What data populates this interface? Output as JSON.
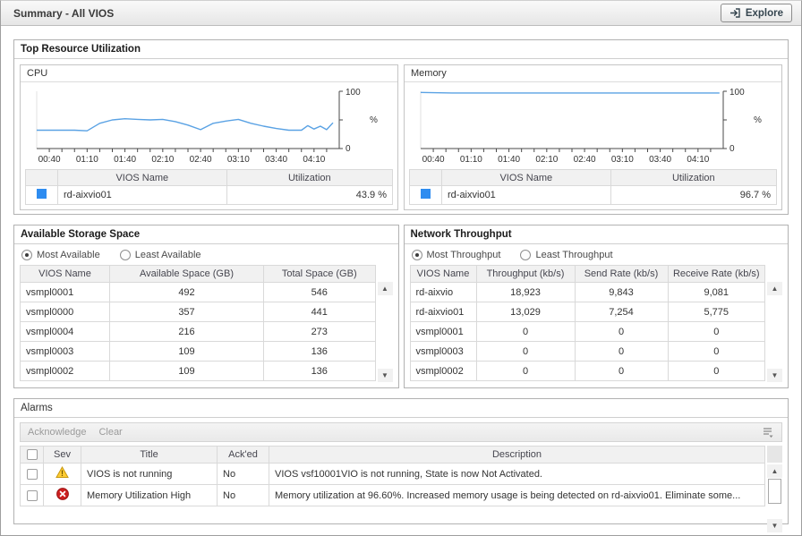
{
  "page": {
    "title": "Summary - All VIOS"
  },
  "header": {
    "explore_label": "Explore"
  },
  "top_resource": {
    "title": "Top Resource Utilization",
    "cards": {
      "cpu": {
        "title": "CPU",
        "headers": [
          "VIOS Name",
          "Utilization"
        ],
        "rows": [
          {
            "color": "#2e8cf0",
            "name": "rd-aixvio01",
            "value": "43.9 %"
          }
        ]
      },
      "memory": {
        "title": "Memory",
        "headers": [
          "VIOS Name",
          "Utilization"
        ],
        "rows": [
          {
            "color": "#2e8cf0",
            "name": "rd-aixvio01",
            "value": "96.7 %"
          }
        ]
      }
    }
  },
  "storage": {
    "title": "Available Storage Space",
    "radios": [
      {
        "label": "Most Available",
        "selected": true
      },
      {
        "label": "Least Available",
        "selected": false
      }
    ],
    "headers": [
      "VIOS Name",
      "Available Space (GB)",
      "Total Space (GB)"
    ],
    "rows": [
      [
        "vsmpl0001",
        "492",
        "546"
      ],
      [
        "vsmpl0000",
        "357",
        "441"
      ],
      [
        "vsmpl0004",
        "216",
        "273"
      ],
      [
        "vsmpl0003",
        "109",
        "136"
      ],
      [
        "vsmpl0002",
        "109",
        "136"
      ]
    ]
  },
  "network": {
    "title": "Network Throughput",
    "radios": [
      {
        "label": "Most Throughput",
        "selected": true
      },
      {
        "label": "Least Throughput",
        "selected": false
      }
    ],
    "headers": [
      "VIOS Name",
      "Throughput (kb/s)",
      "Send Rate (kb/s)",
      "Receive Rate (kb/s)"
    ],
    "rows": [
      [
        "rd-aixvio",
        "18,923",
        "9,843",
        "9,081"
      ],
      [
        "rd-aixvio01",
        "13,029",
        "7,254",
        "5,775"
      ],
      [
        "vsmpl0001",
        "0",
        "0",
        "0"
      ],
      [
        "vsmpl0003",
        "0",
        "0",
        "0"
      ],
      [
        "vsmpl0002",
        "0",
        "0",
        "0"
      ]
    ]
  },
  "alarms": {
    "title": "Alarms",
    "toolbar": [
      "Acknowledge",
      "Clear"
    ],
    "headers": [
      "Sev",
      "Title",
      "Ack'ed",
      "Description"
    ],
    "rows": [
      {
        "severity": "warning",
        "title": "VIOS is not running",
        "acked": "No",
        "description": "VIOS vsf10001VIO is not running, State is now Not Activated."
      },
      {
        "severity": "error",
        "title": "Memory Utilization High",
        "acked": "No",
        "description": "Memory utilization at 96.60%. Increased memory usage is being detected on rd-aixvio01. Eliminate some..."
      }
    ]
  },
  "chart_data": [
    {
      "type": "line",
      "title": "CPU",
      "ylabel": "%",
      "ylim": [
        0,
        100
      ],
      "y_tick_labels": [
        "0",
        "100"
      ],
      "x_range_min": [
        30,
        270
      ],
      "x_tick_step_min": 10,
      "x_tick_labels": [
        "00:40",
        "01:10",
        "01:40",
        "02:10",
        "02:40",
        "03:10",
        "03:40",
        "04:10"
      ],
      "x_label_minutes": [
        40,
        70,
        100,
        130,
        160,
        190,
        220,
        250
      ],
      "legend_position": "bottom-table",
      "grid": false,
      "series": [
        {
          "name": "rd-aixvio01",
          "color": "#5aa2e4",
          "points": [
            [
              30,
              32
            ],
            [
              40,
              32
            ],
            [
              50,
              32
            ],
            [
              60,
              32
            ],
            [
              70,
              31
            ],
            [
              80,
              44
            ],
            [
              90,
              50
            ],
            [
              100,
              52
            ],
            [
              110,
              51
            ],
            [
              120,
              50
            ],
            [
              130,
              51
            ],
            [
              140,
              47
            ],
            [
              150,
              41
            ],
            [
              160,
              33
            ],
            [
              170,
              44
            ],
            [
              180,
              48
            ],
            [
              190,
              51
            ],
            [
              200,
              44
            ],
            [
              210,
              39
            ],
            [
              220,
              35
            ],
            [
              230,
              32
            ],
            [
              240,
              32
            ],
            [
              245,
              40
            ],
            [
              250,
              34
            ],
            [
              255,
              39
            ],
            [
              260,
              33
            ],
            [
              265,
              45
            ]
          ]
        }
      ]
    },
    {
      "type": "line",
      "title": "Memory",
      "ylabel": "%",
      "ylim": [
        0,
        100
      ],
      "y_tick_labels": [
        "0",
        "100"
      ],
      "x_range_min": [
        30,
        270
      ],
      "x_tick_step_min": 10,
      "x_tick_labels": [
        "00:40",
        "01:10",
        "01:40",
        "02:10",
        "02:40",
        "03:10",
        "03:40",
        "04:10"
      ],
      "x_label_minutes": [
        40,
        70,
        100,
        130,
        160,
        190,
        220,
        250
      ],
      "legend_position": "bottom-table",
      "grid": false,
      "series": [
        {
          "name": "rd-aixvio01",
          "color": "#5aa2e4",
          "points": [
            [
              30,
              98
            ],
            [
              40,
              97.5
            ],
            [
              55,
              97
            ],
            [
              100,
              97
            ],
            [
              160,
              97
            ],
            [
              220,
              97
            ],
            [
              267,
              97
            ]
          ]
        }
      ]
    }
  ],
  "colors": {
    "accent_blue": "#2e8cf0",
    "line_blue": "#5aa2e4",
    "warning_yellow": "#ffcc33",
    "error_red": "#cc1f1f"
  }
}
